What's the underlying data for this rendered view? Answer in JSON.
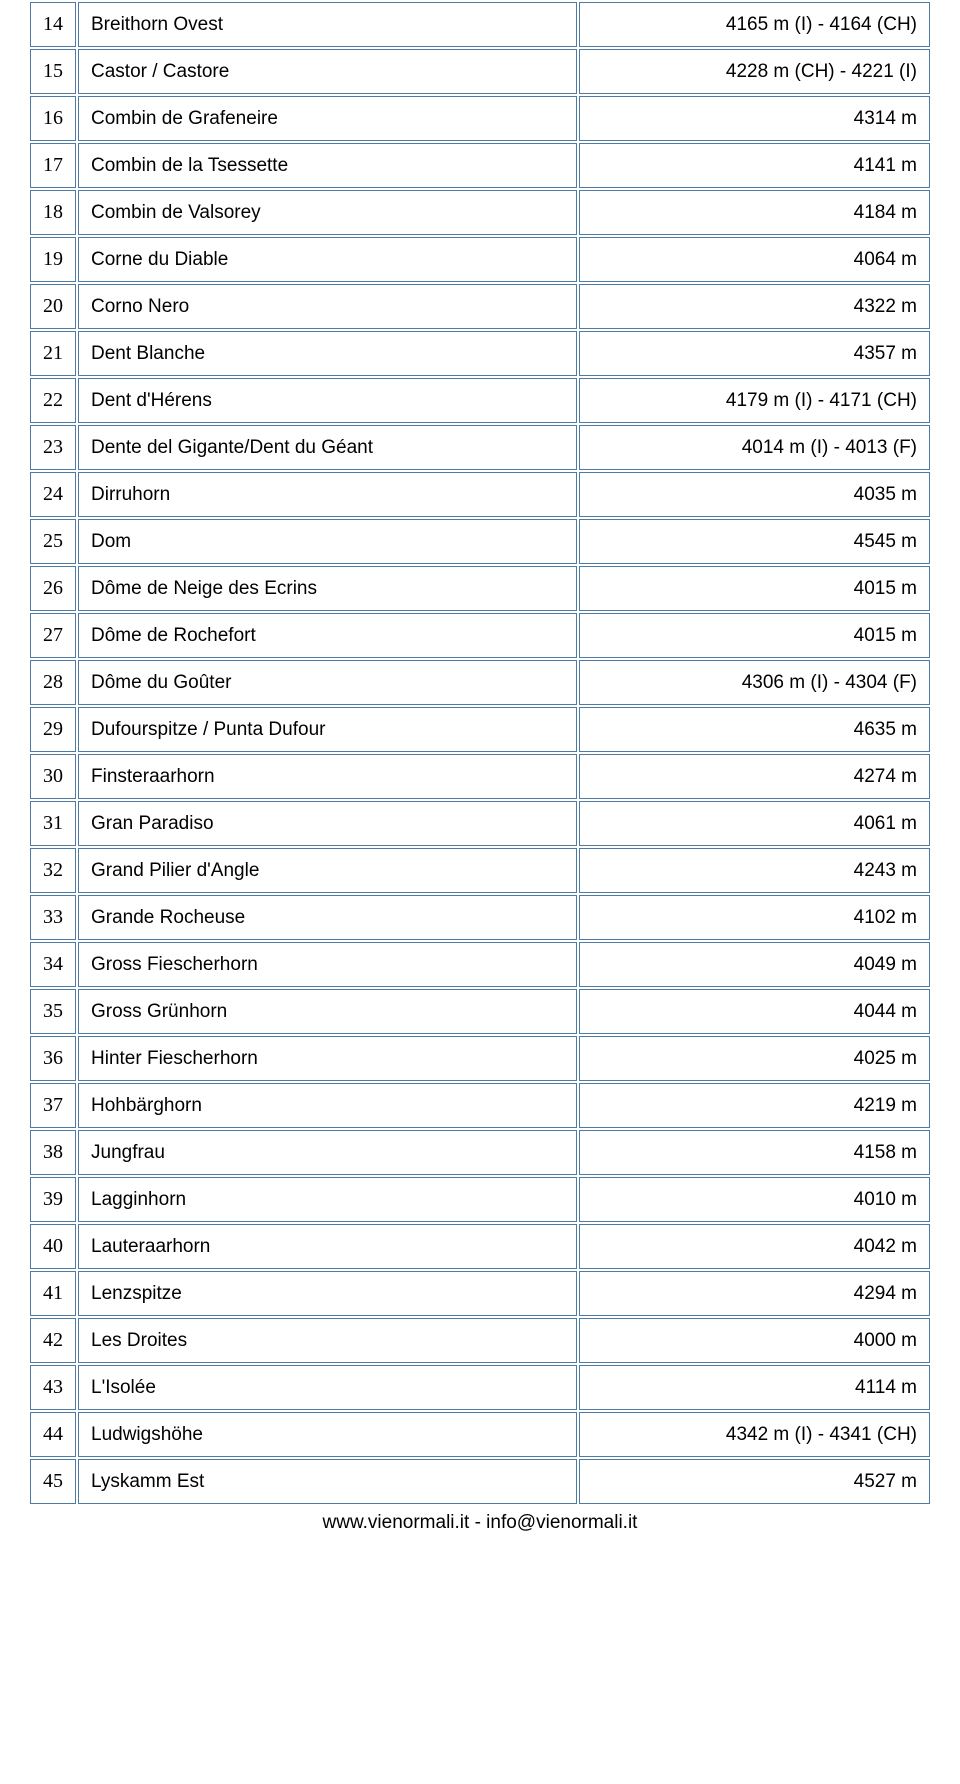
{
  "table": {
    "rows": [
      {
        "num": "14",
        "name": "Breithorn Ovest",
        "elev": "4165 m (I) - 4164 (CH)"
      },
      {
        "num": "15",
        "name": "Castor / Castore",
        "elev": "4228 m (CH) - 4221 (I)"
      },
      {
        "num": "16",
        "name": "Combin de Grafeneire",
        "elev": "4314 m"
      },
      {
        "num": "17",
        "name": "Combin de la Tsessette",
        "elev": "4141 m"
      },
      {
        "num": "18",
        "name": "Combin de Valsorey",
        "elev": "4184 m"
      },
      {
        "num": "19",
        "name": "Corne du Diable",
        "elev": "4064 m"
      },
      {
        "num": "20",
        "name": "Corno Nero",
        "elev": "4322 m"
      },
      {
        "num": "21",
        "name": "Dent Blanche",
        "elev": "4357 m"
      },
      {
        "num": "22",
        "name": "Dent d'Hérens",
        "elev": "4179 m (I) - 4171 (CH)"
      },
      {
        "num": "23",
        "name": "Dente del Gigante/Dent du Géant",
        "elev": "4014 m (I) - 4013 (F)"
      },
      {
        "num": "24",
        "name": "Dirruhorn",
        "elev": "4035 m"
      },
      {
        "num": "25",
        "name": "Dom",
        "elev": "4545 m"
      },
      {
        "num": "26",
        "name": "Dôme de Neige des Ecrins",
        "elev": "4015 m"
      },
      {
        "num": "27",
        "name": "Dôme de Rochefort",
        "elev": "4015 m"
      },
      {
        "num": "28",
        "name": "Dôme du Goûter",
        "elev": "4306 m (I) - 4304 (F)"
      },
      {
        "num": "29",
        "name": "Dufourspitze / Punta Dufour",
        "elev": "4635 m"
      },
      {
        "num": "30",
        "name": "Finsteraarhorn",
        "elev": "4274 m"
      },
      {
        "num": "31",
        "name": "Gran Paradiso",
        "elev": "4061 m"
      },
      {
        "num": "32",
        "name": "Grand Pilier d'Angle",
        "elev": "4243 m"
      },
      {
        "num": "33",
        "name": "Grande Rocheuse",
        "elev": "4102 m"
      },
      {
        "num": "34",
        "name": "Gross Fiescherhorn",
        "elev": "4049 m"
      },
      {
        "num": "35",
        "name": "Gross Grünhorn",
        "elev": "4044 m"
      },
      {
        "num": "36",
        "name": "Hinter Fiescherhorn",
        "elev": "4025 m"
      },
      {
        "num": "37",
        "name": "Hohbärghorn",
        "elev": "4219 m"
      },
      {
        "num": "38",
        "name": "Jungfrau",
        "elev": "4158 m"
      },
      {
        "num": "39",
        "name": "Lagginhorn",
        "elev": "4010 m"
      },
      {
        "num": "40",
        "name": "Lauteraarhorn",
        "elev": "4042 m"
      },
      {
        "num": "41",
        "name": "Lenzspitze",
        "elev": "4294 m"
      },
      {
        "num": "42",
        "name": "Les Droites",
        "elev": "4000 m"
      },
      {
        "num": "43",
        "name": "L'Isolée",
        "elev": "4114 m"
      },
      {
        "num": "44",
        "name": "Ludwigshöhe",
        "elev": "4342 m (I) - 4341 (CH)"
      },
      {
        "num": "45",
        "name": "Lyskamm Est",
        "elev": "4527 m"
      }
    ],
    "border_color": "#4f7ba3",
    "background_color": "#ffffff",
    "cell_font_size": 19,
    "num_col_width": 44
  },
  "footer": {
    "text": "www.vienormali.it  -  info@vienormali.it"
  }
}
